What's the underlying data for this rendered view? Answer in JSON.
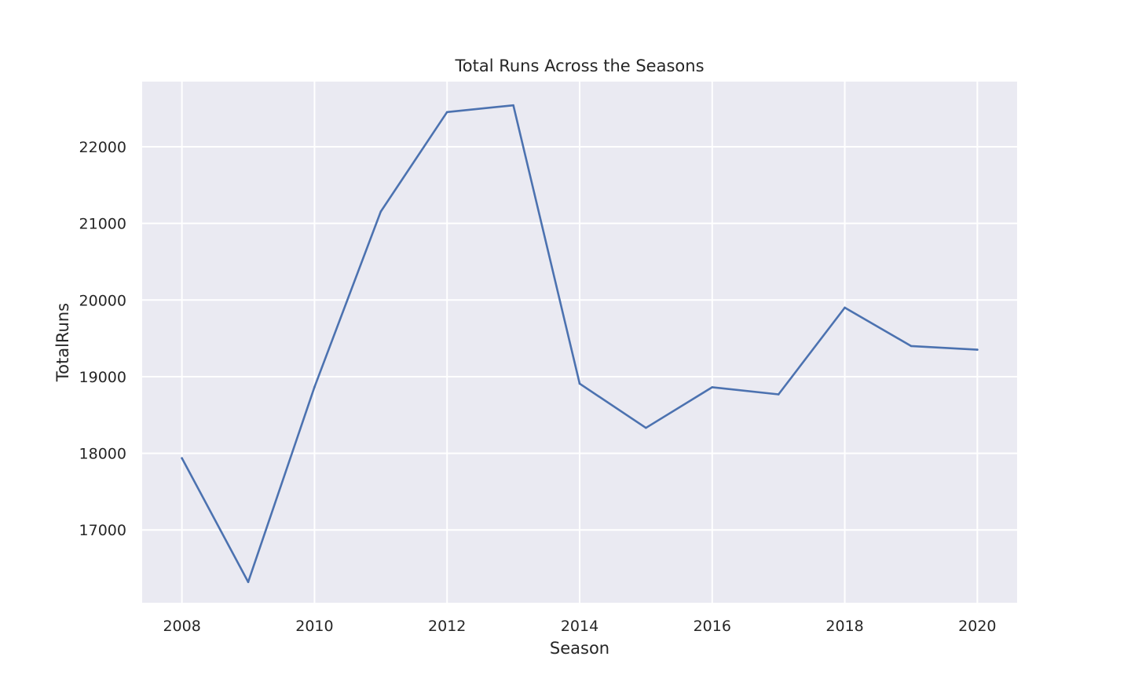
{
  "chart_data": {
    "type": "line",
    "title": "Total Runs Across the Seasons",
    "xlabel": "Season",
    "ylabel": "TotalRuns",
    "xlim": [
      2007.4,
      2020.6
    ],
    "ylim": [
      16050,
      22850
    ],
    "grid": true,
    "legend": "none",
    "x_ticks": [
      "2008",
      "2010",
      "2012",
      "2014",
      "2016",
      "2018",
      "2020"
    ],
    "y_ticks": [
      "17000",
      "18000",
      "19000",
      "20000",
      "21000",
      "22000"
    ],
    "series": [
      {
        "color": "#4c72b0",
        "x": [
          2008,
          2009,
          2010,
          2011,
          2012,
          2013,
          2014,
          2015,
          2016,
          2017,
          2018,
          2019,
          2020
        ],
        "y": [
          17937,
          16320,
          18864,
          21154,
          22453,
          22541,
          18909,
          18332,
          18862,
          18769,
          19901,
          19400,
          19352
        ]
      }
    ]
  },
  "colors": {
    "plot_background": "#eaeaf2",
    "grid": "#ffffff",
    "line": "#4c72b0"
  }
}
